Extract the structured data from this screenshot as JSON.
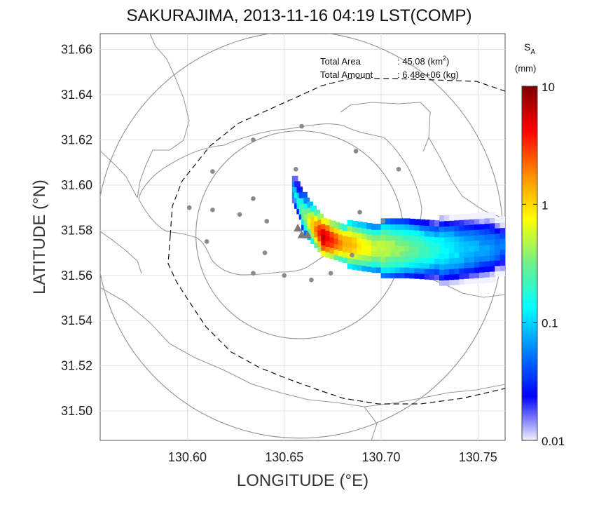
{
  "chart_data": {
    "type": "heatmap",
    "title": "SAKURAJIMA, 2013-11-16 04:19 LST(COMP)",
    "xlabel": "LONGITUDE (°E)",
    "ylabel": "LATITUDE (°N)",
    "xlim": [
      130.555,
      130.764
    ],
    "ylim": [
      31.487,
      31.667
    ],
    "x_ticks": [
      "130.60",
      "130.65",
      "130.70",
      "130.75"
    ],
    "x_tick_values": [
      130.6,
      130.65,
      130.7,
      130.75
    ],
    "y_ticks": [
      "31.50",
      "31.52",
      "31.54",
      "31.56",
      "31.58",
      "31.60",
      "31.62",
      "31.64",
      "31.66"
    ],
    "y_tick_values": [
      31.5,
      31.52,
      31.54,
      31.56,
      31.58,
      31.6,
      31.62,
      31.64,
      31.66
    ],
    "grid": true,
    "annotations": {
      "area_label": "Total Area",
      "area_value": ": 45.08 (km",
      "area_sup": "2",
      "area_close": ")",
      "amount_label": "Total Amount",
      "amount_value": ": 6.48e+06 (kg)"
    },
    "colorbar": {
      "title": "S",
      "title_sub": "A",
      "unit": "(mm)",
      "scale": "log",
      "ticks": [
        "10",
        "1",
        "0.1",
        "0.01"
      ],
      "tick_values": [
        10,
        1,
        0.1,
        0.01
      ],
      "colors": [
        "#7f0000",
        "#ff0000",
        "#ff8c00",
        "#ffff00",
        "#6fef8a",
        "#00ffff",
        "#0080ff",
        "#0000ff",
        "#f2f2ff"
      ]
    },
    "center": {
      "lon": 130.658,
      "lat": 31.578
    },
    "range_circles_deg_lat": [
      0.046,
      0.09
    ],
    "vents": [
      {
        "lon": 130.657,
        "lat": 31.581
      },
      {
        "lon": 130.659,
        "lat": 31.578
      },
      {
        "lon": 130.662,
        "lat": 31.578
      }
    ],
    "stations": [
      {
        "lon": 130.659,
        "lat": 31.626
      },
      {
        "lon": 130.634,
        "lat": 31.62
      },
      {
        "lon": 130.687,
        "lat": 31.615
      },
      {
        "lon": 130.613,
        "lat": 31.606
      },
      {
        "lon": 130.656,
        "lat": 31.607
      },
      {
        "lon": 130.709,
        "lat": 31.607
      },
      {
        "lon": 130.601,
        "lat": 31.59
      },
      {
        "lon": 130.613,
        "lat": 31.589
      },
      {
        "lon": 130.627,
        "lat": 31.587
      },
      {
        "lon": 130.634,
        "lat": 31.594
      },
      {
        "lon": 130.641,
        "lat": 31.584
      },
      {
        "lon": 130.689,
        "lat": 31.588
      },
      {
        "lon": 130.701,
        "lat": 31.584
      },
      {
        "lon": 130.61,
        "lat": 31.575
      },
      {
        "lon": 130.64,
        "lat": 31.57
      },
      {
        "lon": 130.634,
        "lat": 31.561
      },
      {
        "lon": 130.65,
        "lat": 31.56
      },
      {
        "lon": 130.664,
        "lat": 31.558
      },
      {
        "lon": 130.674,
        "lat": 31.561
      },
      {
        "lon": 130.685,
        "lat": 31.569
      }
    ],
    "plume_axis": [
      {
        "lon": 130.654,
        "lat": 31.598,
        "sa": 0.1,
        "half_width": 0.004
      },
      {
        "lon": 130.66,
        "lat": 31.586,
        "sa": 0.4,
        "half_width": 0.005
      },
      {
        "lon": 130.669,
        "lat": 31.577,
        "sa": 6.0,
        "half_width": 0.005
      },
      {
        "lon": 130.68,
        "lat": 31.574,
        "sa": 1.5,
        "half_width": 0.007
      },
      {
        "lon": 130.695,
        "lat": 31.572,
        "sa": 0.6,
        "half_width": 0.009
      },
      {
        "lon": 130.712,
        "lat": 31.572,
        "sa": 0.35,
        "half_width": 0.011
      },
      {
        "lon": 130.73,
        "lat": 31.571,
        "sa": 0.15,
        "half_width": 0.012
      },
      {
        "lon": 130.748,
        "lat": 31.572,
        "sa": 0.08,
        "half_width": 0.013
      },
      {
        "lon": 130.764,
        "lat": 31.573,
        "sa": 0.05,
        "half_width": 0.011
      }
    ]
  }
}
